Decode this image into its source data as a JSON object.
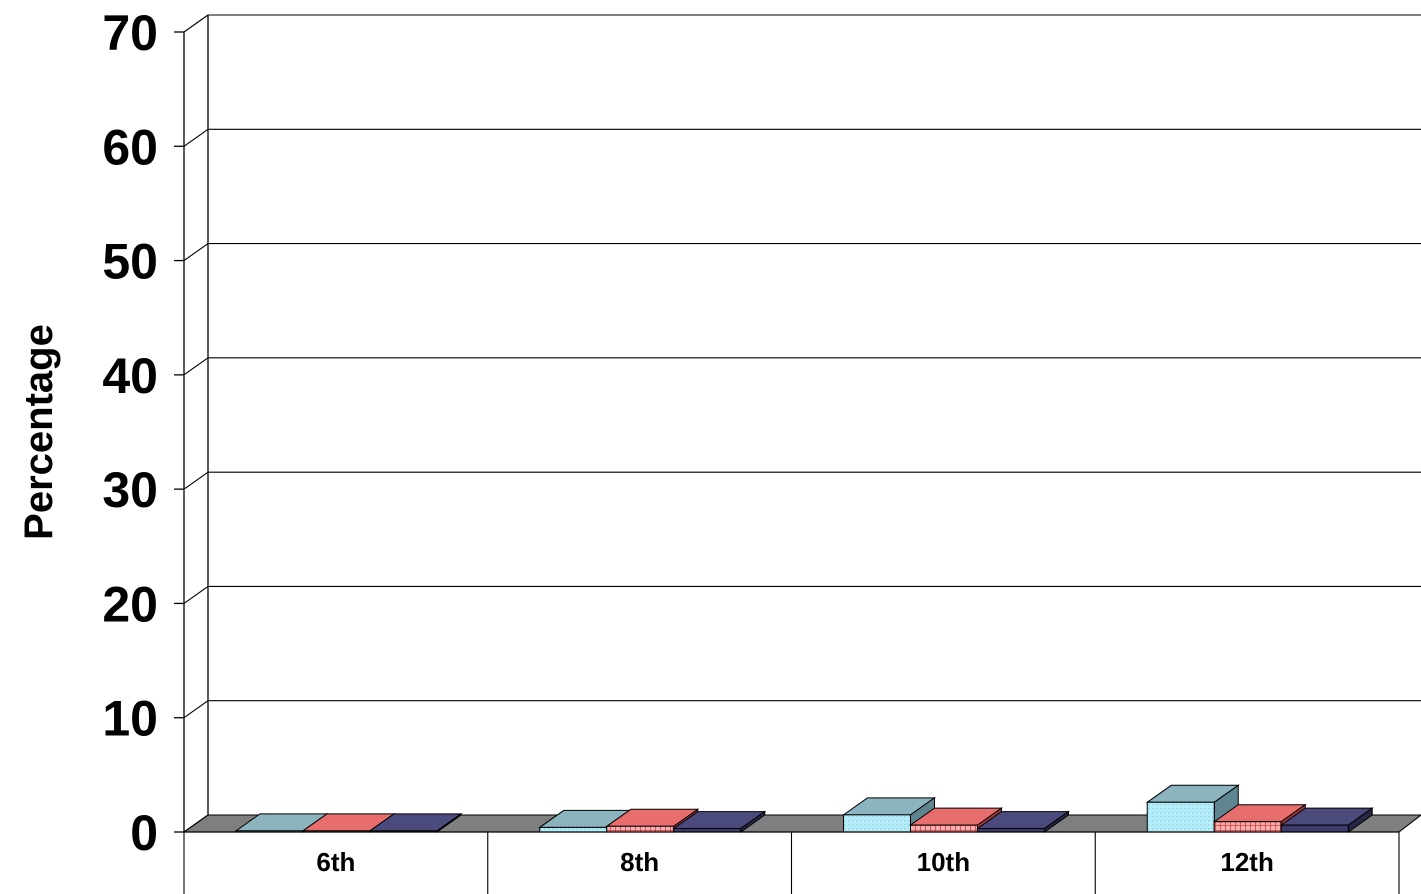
{
  "chart_data": {
    "type": "bar",
    "title": "",
    "xlabel": "",
    "ylabel": "Percentage",
    "ylim": [
      0,
      70
    ],
    "yticks": [
      0,
      10,
      20,
      30,
      40,
      50,
      60,
      70
    ],
    "categories": [
      "6th",
      "8th",
      "10th",
      "12th"
    ],
    "grid": true,
    "three_d": true,
    "series": [
      {
        "values": [
          0.1,
          0.4,
          1.5,
          2.6
        ],
        "color": "#a6e4f4"
      },
      {
        "values": [
          0.1,
          0.5,
          0.6,
          0.9
        ],
        "color": "#e85a5a"
      },
      {
        "values": [
          0.1,
          0.3,
          0.3,
          0.6
        ],
        "color": "#3c3d6e"
      }
    ],
    "colors": {
      "floor": "#7f7f7f",
      "grid": "#000000"
    }
  }
}
